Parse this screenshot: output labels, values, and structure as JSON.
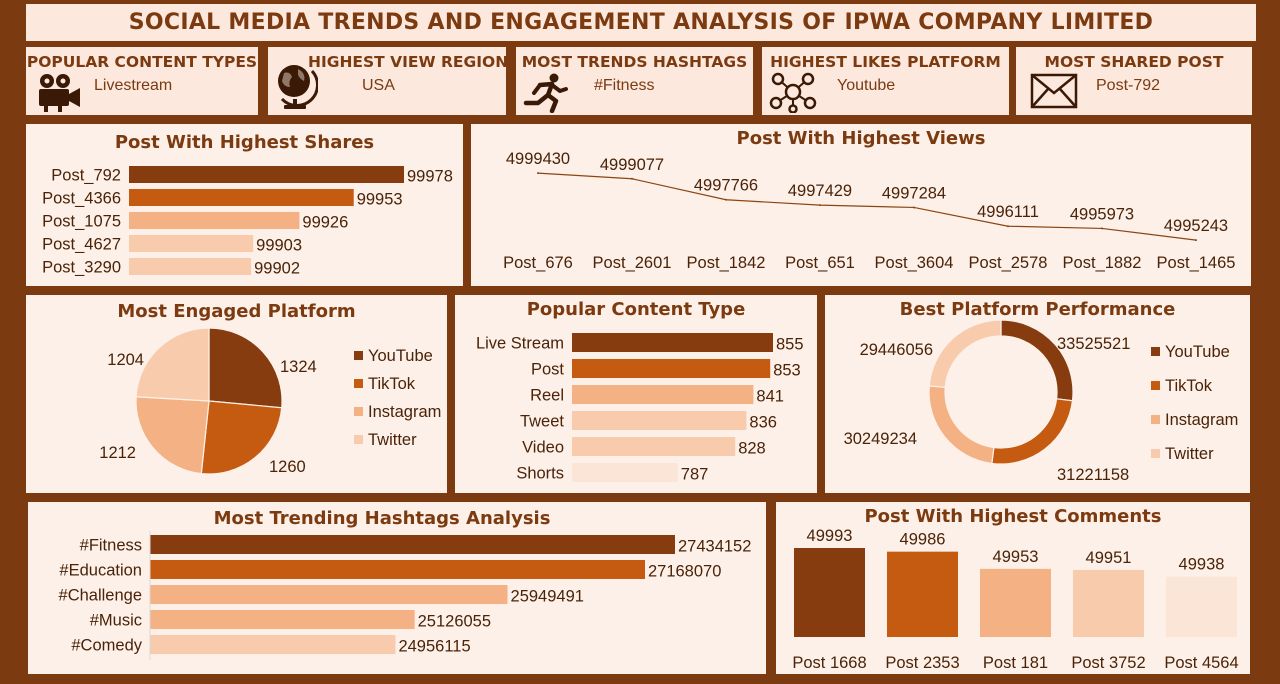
{
  "title": "SOCIAL MEDIA TRENDS  AND ENGAGEMENT ANALYSIS OF IPWA COMPANY LIMITED",
  "kpis": [
    {
      "label": "POPULAR CONTENT TYPES",
      "value": "Livestream",
      "icon": "film-camera-icon"
    },
    {
      "label": "HIGHEST VIEW REGION",
      "value": "USA",
      "icon": "globe-icon"
    },
    {
      "label": "MOST TRENDS HASHTAGS",
      "value": "#Fitness",
      "icon": "runner-icon"
    },
    {
      "label": "HIGHEST LIKES PLATFORM",
      "value": "Youtube",
      "icon": "network-icon"
    },
    {
      "label": "MOST SHARED POST",
      "value": "Post-792",
      "icon": "envelope-icon"
    }
  ],
  "colors": {
    "c1": "#863c0e",
    "c2": "#c55a11",
    "c3": "#f4b183",
    "c4": "#f8cbad",
    "c5": "#fbe5d6",
    "bg": "#7b3a10"
  },
  "chart_data": [
    {
      "id": "shares",
      "type": "bar",
      "orientation": "horizontal",
      "title": "Post With Highest Shares",
      "categories": [
        "Post_792",
        "Post_4366",
        "Post_1075",
        "Post_4627",
        "Post_3290"
      ],
      "values": [
        99978,
        99953,
        99926,
        99903,
        99902
      ]
    },
    {
      "id": "views",
      "type": "line",
      "title": "Post With Highest Views",
      "categories": [
        "Post_676",
        "Post_2601",
        "Post_1842",
        "Post_651",
        "Post_3604",
        "Post_2578",
        "Post_1882",
        "Post_1465"
      ],
      "values": [
        4999430,
        4999077,
        4997766,
        4997429,
        4997284,
        4996111,
        4995973,
        4995243
      ]
    },
    {
      "id": "engaged",
      "type": "pie",
      "title": "Most  Engaged Platform",
      "categories": [
        "YouTube",
        "TikTok",
        "Instagram",
        "Twitter"
      ],
      "values": [
        1324,
        1260,
        1212,
        1204
      ],
      "legend": "right"
    },
    {
      "id": "content",
      "type": "bar",
      "orientation": "horizontal",
      "title": "Popular Content Type",
      "categories": [
        "Live Stream",
        "Post",
        "Reel",
        "Tweet",
        "Video",
        "Shorts"
      ],
      "values": [
        855,
        853,
        841,
        836,
        828,
        787
      ]
    },
    {
      "id": "performance",
      "type": "pie",
      "variant": "donut",
      "title": "Best Platform Performance",
      "categories": [
        "YouTube",
        "TikTok",
        "Instagram",
        "Twitter"
      ],
      "values": [
        33525521,
        31221158,
        30249234,
        29446056
      ],
      "legend": "right"
    },
    {
      "id": "hashtags",
      "type": "bar",
      "orientation": "horizontal",
      "title": "Most Trending Hashtags Analysis",
      "categories": [
        "#Fitness",
        "#Education",
        "#Challenge",
        "#Music",
        "#Comedy"
      ],
      "values": [
        27434152,
        27168070,
        25949491,
        25126055,
        24956115
      ]
    },
    {
      "id": "comments",
      "type": "bar",
      "orientation": "vertical",
      "title": "Post With Highest Comments",
      "categories": [
        "Post  1668",
        "Post  2353",
        "Post  181",
        "Post  3752",
        "Post  4564"
      ],
      "values": [
        49993,
        49986,
        49953,
        49951,
        49938
      ]
    }
  ]
}
